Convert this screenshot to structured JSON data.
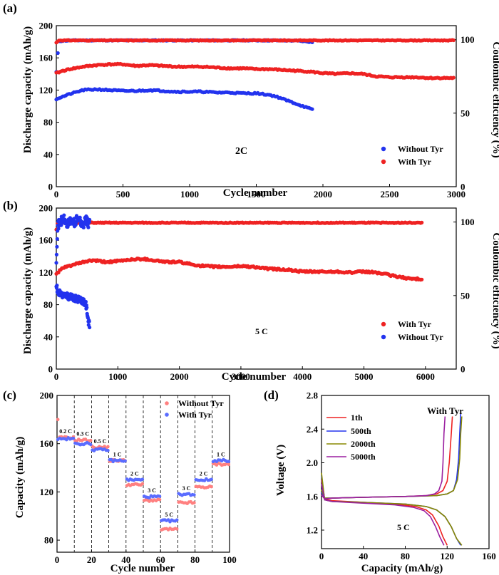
{
  "colors": {
    "red": "#ee2222",
    "blue": "#2233ee",
    "pink": "#ff8080",
    "lightblue": "#5a6cff",
    "c1th": "#ee2222",
    "c500": "#2233ee",
    "c2000": "#888800",
    "c5000": "#9b1fa0"
  },
  "chart_data": [
    {
      "panel": "(a)",
      "type": "scatter",
      "xlabel": "Cycle number",
      "ylabel": "Discharge capacity (mAh/g)",
      "y2label": "Coulombic efficiency (%)",
      "xlim": [
        0,
        3000
      ],
      "ylim": [
        0,
        200
      ],
      "y2lim": [
        0,
        109.5
      ],
      "xticks": [
        "0",
        "500",
        "1000",
        "1500",
        "2000",
        "2500",
        "3000"
      ],
      "yticks": [
        "0",
        "40",
        "80",
        "120",
        "160",
        "200"
      ],
      "y2ticks": [
        "0",
        "50",
        "100"
      ],
      "annotation": "2C",
      "legend_position": "bottom-right",
      "series": [
        {
          "name": "Without Tyr",
          "color": "blue",
          "axis": "left",
          "metric": "capacity",
          "x": [
            0,
            50,
            100,
            200,
            300,
            400,
            500,
            600,
            700,
            800,
            900,
            1000,
            1100,
            1200,
            1300,
            1400,
            1500,
            1550,
            1600,
            1650,
            1700,
            1750,
            1800,
            1850,
            1900,
            1930
          ],
          "y": [
            109,
            112,
            115,
            120,
            121,
            120,
            119,
            119,
            120,
            119,
            118,
            118,
            118,
            117,
            117,
            116,
            116,
            115,
            114,
            112,
            109,
            106,
            103,
            100,
            97,
            95
          ]
        },
        {
          "name": "With Tyr",
          "color": "red",
          "axis": "left",
          "metric": "capacity",
          "x": [
            0,
            50,
            100,
            200,
            300,
            400,
            500,
            600,
            700,
            800,
            900,
            1000,
            1100,
            1200,
            1300,
            1400,
            1500,
            1600,
            1700,
            1800,
            1900,
            2000,
            2100,
            2200,
            2300,
            2400,
            2500,
            2600,
            2700,
            2800,
            2900,
            2980
          ],
          "y": [
            141,
            144,
            146,
            149,
            151,
            152,
            152,
            150,
            151,
            150,
            149,
            149,
            149,
            148,
            147,
            147,
            146,
            146,
            145,
            144,
            143,
            141,
            140,
            141,
            140,
            137,
            136,
            136,
            136,
            135,
            135,
            135
          ]
        },
        {
          "name": "Without Tyr",
          "color": "blue",
          "axis": "right",
          "metric": "ce",
          "x": [
            0,
            20,
            100,
            500,
            1000,
            1500,
            1700,
            1800,
            1900,
            1930
          ],
          "y": [
            78,
            99,
            99.5,
            99.5,
            99.5,
            99.5,
            99.4,
            99.3,
            98.5,
            98
          ]
        },
        {
          "name": "With Tyr",
          "color": "red",
          "axis": "right",
          "metric": "ce",
          "x": [
            0,
            20,
            100,
            500,
            1000,
            1500,
            2000,
            2500,
            2980
          ],
          "y": [
            98,
            99.5,
            99.5,
            99.5,
            99.5,
            99.5,
            99.5,
            99.5,
            99.5
          ]
        }
      ]
    },
    {
      "panel": "(b)",
      "type": "scatter",
      "xlabel": "Cycle number",
      "ylabel": "Discharge capacity (mAh/g)",
      "y2label": "Coulombic efficiency (%)",
      "xlim": [
        0,
        6500
      ],
      "ylim": [
        0,
        200
      ],
      "y2lim": [
        0,
        109.5
      ],
      "xticks": [
        "0",
        "1000",
        "2000",
        "3000",
        "4000",
        "5000",
        "6000"
      ],
      "yticks": [
        "0",
        "40",
        "80",
        "120",
        "160",
        "200"
      ],
      "y2ticks": [
        "0",
        "50",
        "100"
      ],
      "annotation": "5 C",
      "legend_position": "bottom-right",
      "series": [
        {
          "name": "With Tyr",
          "color": "red",
          "axis": "left",
          "metric": "capacity",
          "x": [
            0,
            50,
            100,
            200,
            300,
            400,
            500,
            600,
            800,
            1000,
            1200,
            1400,
            1600,
            1800,
            2000,
            2200,
            2400,
            2600,
            2800,
            3000,
            3200,
            3400,
            3600,
            3800,
            4000,
            4200,
            4400,
            4600,
            4800,
            5000,
            5200,
            5400,
            5600,
            5800,
            5950
          ],
          "y": [
            118,
            122,
            125,
            128,
            130,
            132,
            134,
            135,
            133,
            134,
            136,
            137,
            135,
            133,
            133,
            130,
            128,
            127,
            127,
            128,
            127,
            125,
            124,
            123,
            121,
            121,
            121,
            121,
            120,
            121,
            120,
            117,
            114,
            112,
            112
          ]
        },
        {
          "name": "Without Tyr",
          "color": "blue",
          "axis": "left",
          "metric": "capacity",
          "x": [
            0,
            20,
            50,
            100,
            150,
            200,
            250,
            300,
            350,
            400,
            450,
            480,
            500,
            520,
            540
          ],
          "y": [
            103,
            97,
            95,
            92,
            91,
            90,
            89,
            88,
            87,
            85,
            84,
            80,
            72,
            60,
            54
          ]
        },
        {
          "name": "With Tyr",
          "color": "red",
          "axis": "right",
          "metric": "ce",
          "x": [
            0,
            20,
            100,
            1000,
            2000,
            3000,
            4000,
            5000,
            5950
          ],
          "y": [
            95,
            99.5,
            99.5,
            99.5,
            99.5,
            99.5,
            99.5,
            99.5,
            99.5
          ]
        },
        {
          "name": "Without Tyr",
          "color": "blue",
          "axis": "right",
          "metric": "ce",
          "x": [
            0,
            20,
            60,
            120,
            180,
            240,
            300,
            360,
            420,
            480,
            520,
            540
          ],
          "y": [
            75,
            97,
            100,
            102,
            98,
            101,
            99,
            104,
            97,
            102,
            98,
            100
          ]
        }
      ]
    },
    {
      "panel": "(c)",
      "type": "scatter",
      "xlabel": "Cycle number",
      "ylabel": "Capacity (mAh/g)",
      "xlim": [
        0,
        100
      ],
      "ylim": [
        70,
        200
      ],
      "xticks": [
        "0",
        "20",
        "40",
        "60",
        "80",
        "100"
      ],
      "yticks": [
        "80",
        "120",
        "160",
        "200"
      ],
      "legend_position": "top-right",
      "stages": [
        {
          "label": "0.2 C",
          "x0": 0,
          "x1": 10
        },
        {
          "label": "0.3 C",
          "x0": 10,
          "x1": 20
        },
        {
          "label": "0.5 C",
          "x0": 20,
          "x1": 30
        },
        {
          "label": "1 C",
          "x0": 30,
          "x1": 40
        },
        {
          "label": "2 C",
          "x0": 40,
          "x1": 50
        },
        {
          "label": "3 C",
          "x0": 50,
          "x1": 60
        },
        {
          "label": "5 C",
          "x0": 60,
          "x1": 70
        },
        {
          "label": "3 C",
          "x0": 70,
          "x1": 80
        },
        {
          "label": "2 C",
          "x0": 80,
          "x1": 90
        },
        {
          "label": "1 C",
          "x0": 90,
          "x1": 100
        }
      ],
      "series": [
        {
          "name": "Without Tyr",
          "color": "pink",
          "stage_values": [
            165,
            163,
            157,
            146,
            126,
            113,
            89,
            111,
            124,
            143
          ],
          "first_point": 180
        },
        {
          "name": "With Tyr",
          "color": "lightblue",
          "stage_values": [
            164,
            160,
            155,
            146,
            130,
            116,
            96,
            118,
            130,
            146
          ]
        }
      ]
    },
    {
      "panel": "(d)",
      "type": "line",
      "xlabel": "Capacity (mAh/g)",
      "ylabel": "Voltage (V)",
      "xlim": [
        0,
        160
      ],
      "ylim": [
        0.98,
        2.8
      ],
      "xticks": [
        "0",
        "40",
        "80",
        "120",
        "160"
      ],
      "yticks": [
        "1.2",
        "1.6",
        "2.0",
        "2.4",
        "2.8"
      ],
      "title": "With Tyr",
      "annotation": "5 C",
      "legend_position": "top-left",
      "series": [
        {
          "name": "1th",
          "color": "c1th",
          "charge": {
            "x": [
              0,
              3,
              10,
              40,
              80,
              100,
              110,
              116,
              120,
              122,
              124,
              125
            ],
            "y": [
              1.62,
              1.57,
              1.58,
              1.59,
              1.6,
              1.61,
              1.63,
              1.67,
              1.78,
              2.0,
              2.35,
              2.55
            ]
          },
          "discharge": {
            "x": [
              0,
              3,
              10,
              40,
              70,
              90,
              100,
              106,
              112,
              116,
              120
            ],
            "y": [
              1.8,
              1.57,
              1.55,
              1.53,
              1.51,
              1.48,
              1.44,
              1.38,
              1.25,
              1.12,
              1.02
            ]
          }
        },
        {
          "name": "500th",
          "color": "c500",
          "charge": {
            "x": [
              0,
              3,
              10,
              40,
              80,
              110,
              120,
              126,
              129,
              131,
              132,
              133
            ],
            "y": [
              1.65,
              1.58,
              1.58,
              1.59,
              1.6,
              1.61,
              1.63,
              1.67,
              1.8,
              2.05,
              2.35,
              2.58
            ]
          },
          "discharge": {
            "x": [
              0,
              3,
              10,
              40,
              80,
              100,
              110,
              118,
              124,
              129,
              133
            ],
            "y": [
              1.85,
              1.56,
              1.54,
              1.53,
              1.51,
              1.48,
              1.44,
              1.36,
              1.24,
              1.1,
              1.02
            ]
          }
        },
        {
          "name": "2000th",
          "color": "c2000",
          "charge": {
            "x": [
              0,
              3,
              10,
              40,
              80,
              110,
              120,
              126,
              130,
              132,
              133,
              134
            ],
            "y": [
              1.68,
              1.58,
              1.58,
              1.59,
              1.6,
              1.61,
              1.63,
              1.67,
              1.8,
              2.05,
              2.35,
              2.55
            ]
          },
          "discharge": {
            "x": [
              0,
              3,
              10,
              40,
              80,
              100,
              110,
              118,
              124,
              129,
              134
            ],
            "y": [
              1.88,
              1.56,
              1.54,
              1.53,
              1.51,
              1.48,
              1.44,
              1.36,
              1.24,
              1.1,
              1.02
            ]
          }
        },
        {
          "name": "5000th",
          "color": "c5000",
          "charge": {
            "x": [
              0,
              3,
              10,
              40,
              80,
              100,
              108,
              112,
              115,
              116,
              117,
              118
            ],
            "y": [
              1.62,
              1.57,
              1.58,
              1.59,
              1.6,
              1.61,
              1.63,
              1.67,
              1.78,
              2.0,
              2.35,
              2.55
            ]
          },
          "discharge": {
            "x": [
              0,
              3,
              10,
              40,
              70,
              88,
              98,
              104,
              109,
              113,
              117
            ],
            "y": [
              1.75,
              1.56,
              1.54,
              1.52,
              1.5,
              1.47,
              1.43,
              1.36,
              1.24,
              1.12,
              1.02
            ]
          }
        }
      ]
    }
  ]
}
